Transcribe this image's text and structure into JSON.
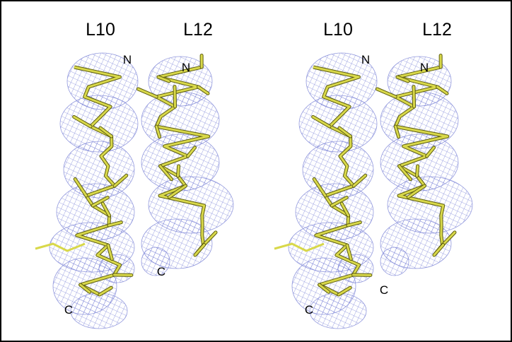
{
  "panels": [
    {
      "helices": [
        {
          "label": "L10",
          "n_label": "N",
          "c_label": "C"
        },
        {
          "label": "L12",
          "n_label": "N",
          "c_label": "C"
        }
      ]
    },
    {
      "helices": [
        {
          "label": "L10",
          "n_label": "N",
          "c_label": "C"
        },
        {
          "label": "L12",
          "n_label": "N",
          "c_label": "C"
        }
      ]
    }
  ]
}
